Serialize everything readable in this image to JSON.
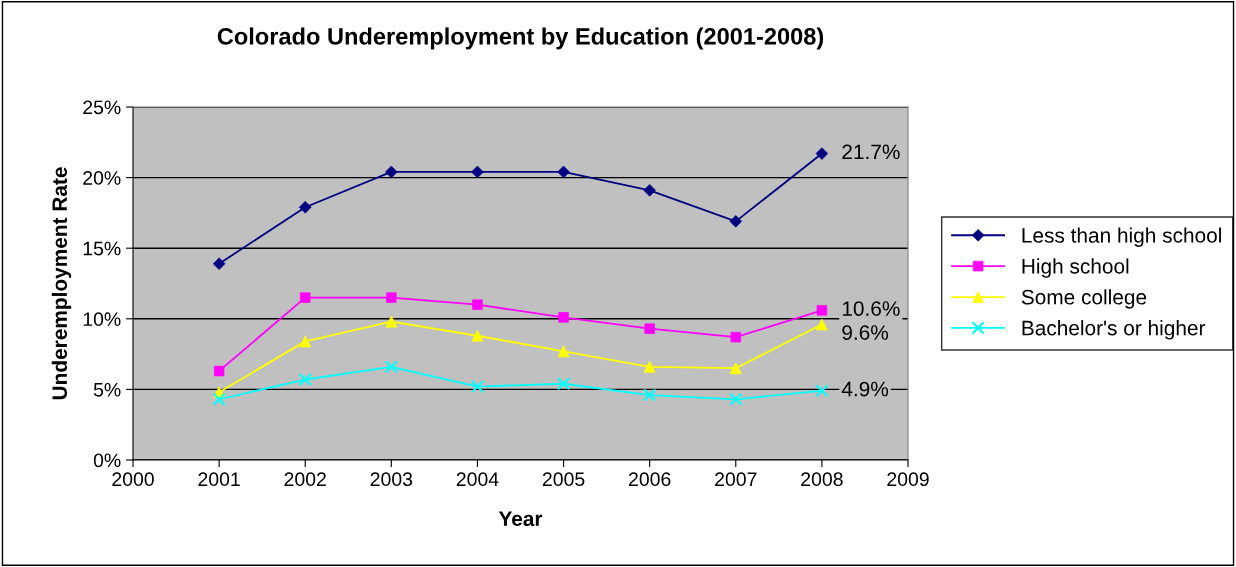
{
  "chart_data": {
    "type": "line",
    "title": "Colorado Underemployment by Education (2001-2008)",
    "xlabel": "Year",
    "ylabel": "Underemployment Rate",
    "x": [
      2001,
      2002,
      2003,
      2004,
      2005,
      2006,
      2007,
      2008
    ],
    "series": [
      {
        "name": "Less than high school",
        "color": "#000080",
        "marker": "diamond",
        "values": [
          13.9,
          17.9,
          20.4,
          20.4,
          20.4,
          19.1,
          16.9,
          21.7
        ],
        "value_labels": [
          null,
          null,
          null,
          null,
          null,
          null,
          null,
          "21.7%"
        ]
      },
      {
        "name": "High school",
        "color": "#ff00ff",
        "marker": "square",
        "values": [
          6.3,
          11.5,
          11.5,
          11.0,
          10.1,
          9.3,
          8.7,
          10.6
        ],
        "value_labels": [
          null,
          null,
          null,
          null,
          null,
          null,
          null,
          "10.6%"
        ]
      },
      {
        "name": "Some college",
        "color": "#ffff00",
        "marker": "triangle",
        "values": [
          4.8,
          8.4,
          9.8,
          8.8,
          7.7,
          6.6,
          6.5,
          9.6
        ],
        "value_labels": [
          null,
          null,
          null,
          null,
          null,
          null,
          null,
          "9.6%"
        ]
      },
      {
        "name": "Bachelor's or higher",
        "color": "#00ffff",
        "marker": "cross",
        "values": [
          4.3,
          5.7,
          6.6,
          5.2,
          5.4,
          4.6,
          4.3,
          4.9
        ],
        "value_labels": [
          null,
          null,
          null,
          null,
          null,
          null,
          null,
          "4.9%"
        ]
      }
    ],
    "xlim": [
      2000,
      2009
    ],
    "xticks": [
      2000,
      2001,
      2002,
      2003,
      2004,
      2005,
      2006,
      2007,
      2008,
      2009
    ],
    "ylim": [
      0,
      25
    ],
    "yticks": [
      {
        "value": 0,
        "label": "0%"
      },
      {
        "value": 5,
        "label": "5%"
      },
      {
        "value": 10,
        "label": "10%"
      },
      {
        "value": 15,
        "label": "15%"
      },
      {
        "value": 20,
        "label": "20%"
      },
      {
        "value": 25,
        "label": "25%"
      }
    ],
    "grid": "y",
    "legend": "right",
    "line_style": "solid"
  }
}
